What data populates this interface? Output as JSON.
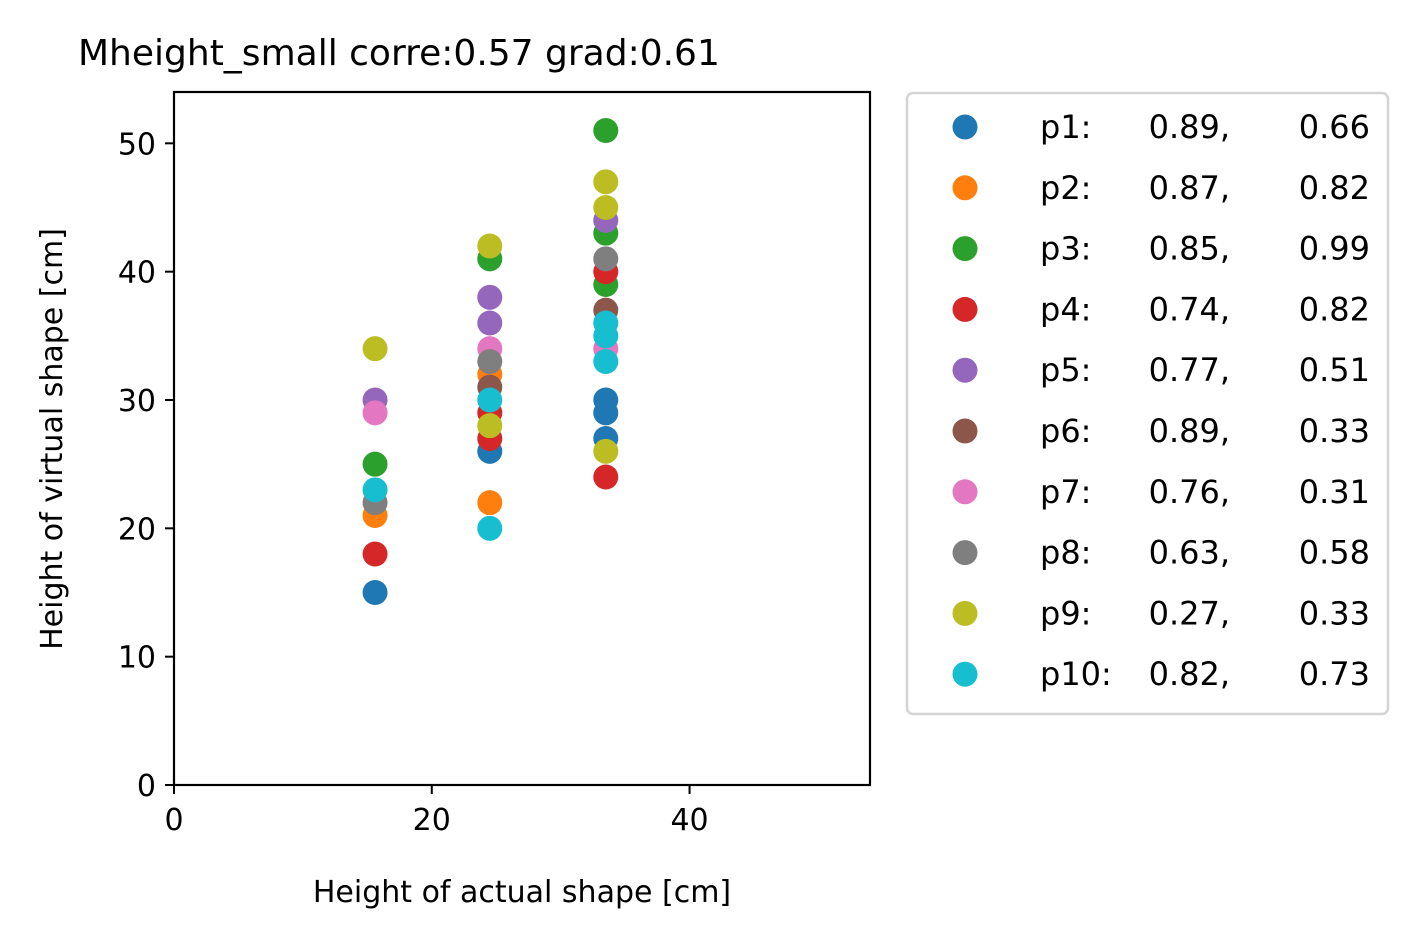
{
  "chart_data": {
    "type": "scatter",
    "title": "Mheight_small corre:0.57 grad:0.61",
    "xlabel": "Height of actual shape [cm]",
    "ylabel": "Height of virtual shape [cm]",
    "xlim": [
      0,
      54
    ],
    "ylim": [
      0,
      54
    ],
    "xticks": [
      0,
      20,
      40
    ],
    "yticks": [
      0,
      10,
      20,
      30,
      40,
      50
    ],
    "grid": false,
    "legend_position": "outside-right",
    "series": [
      {
        "name": "p1",
        "stats": [
          "0.89",
          "0.66"
        ],
        "color": "#1f77b4",
        "points": [
          [
            15.6,
            15
          ],
          [
            24.5,
            26
          ],
          [
            33.5,
            27
          ],
          [
            33.5,
            29
          ],
          [
            33.5,
            30
          ]
        ]
      },
      {
        "name": "p2",
        "stats": [
          "0.87",
          "0.82"
        ],
        "color": "#ff7f0e",
        "points": [
          [
            15.6,
            21
          ],
          [
            24.5,
            22
          ],
          [
            24.5,
            32
          ]
        ]
      },
      {
        "name": "p3",
        "stats": [
          "0.85",
          "0.99"
        ],
        "color": "#2ca02c",
        "points": [
          [
            15.6,
            25
          ],
          [
            24.5,
            41
          ],
          [
            33.5,
            51
          ],
          [
            33.5,
            43
          ],
          [
            33.5,
            39
          ]
        ]
      },
      {
        "name": "p4",
        "stats": [
          "0.74",
          "0.82"
        ],
        "color": "#d62728",
        "points": [
          [
            15.6,
            18
          ],
          [
            24.5,
            27
          ],
          [
            24.5,
            29
          ],
          [
            33.5,
            24
          ],
          [
            33.5,
            40
          ]
        ]
      },
      {
        "name": "p5",
        "stats": [
          "0.77",
          "0.51"
        ],
        "color": "#9467bd",
        "points": [
          [
            15.6,
            30
          ],
          [
            24.5,
            38
          ],
          [
            24.5,
            36
          ],
          [
            33.5,
            44
          ]
        ]
      },
      {
        "name": "p6",
        "stats": [
          "0.89",
          "0.33"
        ],
        "color": "#8c564b",
        "points": [
          [
            24.5,
            31
          ],
          [
            33.5,
            37
          ]
        ]
      },
      {
        "name": "p7",
        "stats": [
          "0.76",
          "0.31"
        ],
        "color": "#e377c2",
        "points": [
          [
            15.6,
            29
          ],
          [
            24.5,
            34
          ],
          [
            33.5,
            34
          ]
        ]
      },
      {
        "name": "p8",
        "stats": [
          "0.63",
          "0.58"
        ],
        "color": "#7f7f7f",
        "points": [
          [
            15.6,
            22
          ],
          [
            24.5,
            33
          ],
          [
            33.5,
            41
          ]
        ]
      },
      {
        "name": "p9",
        "stats": [
          "0.27",
          "0.33"
        ],
        "color": "#bcbd22",
        "points": [
          [
            15.6,
            34
          ],
          [
            24.5,
            42
          ],
          [
            24.5,
            28
          ],
          [
            33.5,
            47
          ],
          [
            33.5,
            45
          ],
          [
            33.5,
            26
          ]
        ]
      },
      {
        "name": "p10",
        "stats": [
          "0.82",
          "0.73"
        ],
        "color": "#17becf",
        "points": [
          [
            15.6,
            23
          ],
          [
            24.5,
            20
          ],
          [
            24.5,
            30
          ],
          [
            33.5,
            36
          ],
          [
            33.5,
            35
          ],
          [
            33.5,
            33
          ]
        ]
      }
    ]
  }
}
